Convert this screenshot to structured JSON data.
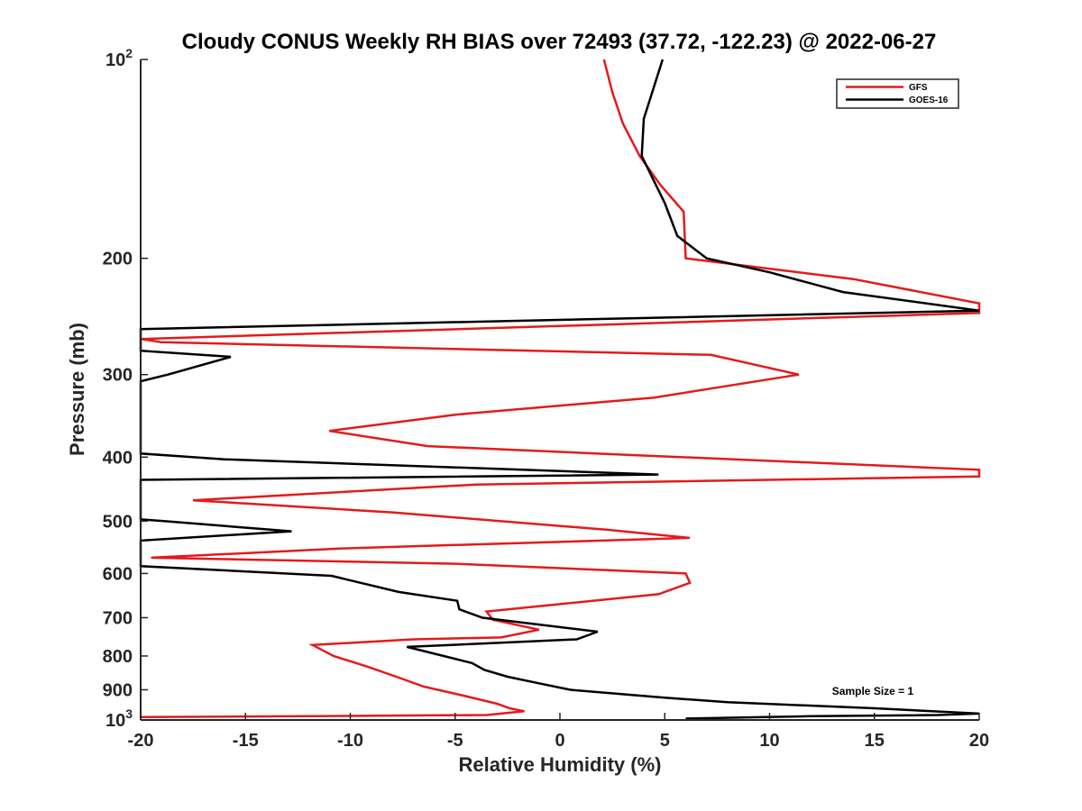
{
  "chart_data": {
    "type": "line",
    "title": "Cloudy CONUS Weekly RH BIAS over 72493 (37.72, -122.23) @ 2022-06-27",
    "xlabel": "Relative Humidity (%)",
    "ylabel": "Pressure (mb)",
    "xlim": [
      -20,
      20
    ],
    "ylim": [
      100,
      1000
    ],
    "y_scale": "log",
    "y_reversed": true,
    "x_ticks": [
      -20,
      -15,
      -10,
      -5,
      0,
      5,
      10,
      15,
      20
    ],
    "x_tick_labels": [
      "-20",
      "-15",
      "-10",
      "-5",
      "0",
      "5",
      "10",
      "15",
      "20"
    ],
    "y_ticks": [
      100,
      200,
      300,
      400,
      500,
      600,
      700,
      800,
      900,
      1000
    ],
    "y_tick_labels": [
      {
        "base": "10",
        "exp": "2"
      },
      {
        "base": "200",
        "exp": ""
      },
      {
        "base": "300",
        "exp": ""
      },
      {
        "base": "400",
        "exp": ""
      },
      {
        "base": "500",
        "exp": ""
      },
      {
        "base": "600",
        "exp": ""
      },
      {
        "base": "700",
        "exp": ""
      },
      {
        "base": "800",
        "exp": ""
      },
      {
        "base": "900",
        "exp": ""
      },
      {
        "base": "10",
        "exp": "3"
      }
    ],
    "grid": false,
    "legend_position": "top-right",
    "annotation": "Sample Size = 1",
    "series": [
      {
        "name": "GFS",
        "color": "#e41a1c",
        "points": [
          [
            2.1,
            100
          ],
          [
            2.5,
            112
          ],
          [
            3.0,
            125
          ],
          [
            3.8,
            140
          ],
          [
            4.8,
            155
          ],
          [
            5.9,
            170
          ],
          [
            6.0,
            200
          ],
          [
            14.0,
            215
          ],
          [
            20.0,
            234
          ],
          [
            20.0,
            242
          ],
          [
            -20.0,
            265
          ],
          [
            -19.0,
            268
          ],
          [
            7.2,
            280
          ],
          [
            11.4,
            300
          ],
          [
            4.5,
            325
          ],
          [
            -5.0,
            345
          ],
          [
            -11.0,
            365
          ],
          [
            -6.3,
            385
          ],
          [
            4.2,
            398
          ],
          [
            20.0,
            418
          ],
          [
            20.0,
            428
          ],
          [
            -4.0,
            440
          ],
          [
            -17.5,
            465
          ],
          [
            -8.0,
            485
          ],
          [
            2.2,
            515
          ],
          [
            6.2,
            530
          ],
          [
            -10.5,
            550
          ],
          [
            -19.5,
            568
          ],
          [
            -5.0,
            580
          ],
          [
            6.0,
            600
          ],
          [
            6.2,
            620
          ],
          [
            4.7,
            645
          ],
          [
            -3.5,
            685
          ],
          [
            -3.2,
            705
          ],
          [
            -1.0,
            730
          ],
          [
            -2.8,
            750
          ],
          [
            -7.0,
            755
          ],
          [
            -11.8,
            770
          ],
          [
            -10.8,
            800
          ],
          [
            -9.2,
            830
          ],
          [
            -7.8,
            860
          ],
          [
            -6.5,
            890
          ],
          [
            -4.5,
            920
          ],
          [
            -3.0,
            945
          ],
          [
            -2.4,
            960
          ],
          [
            -1.7,
            970
          ],
          [
            -3.5,
            983
          ],
          [
            -20.0,
            990
          ]
        ]
      },
      {
        "name": "GOES-16",
        "color": "#000000",
        "points": [
          [
            4.9,
            100
          ],
          [
            4.0,
            123
          ],
          [
            3.9,
            140
          ],
          [
            5.0,
            165
          ],
          [
            5.6,
            185
          ],
          [
            7.0,
            200
          ],
          [
            10.0,
            210
          ],
          [
            13.5,
            225
          ],
          [
            20.0,
            240
          ],
          [
            -20.0,
            256
          ],
          [
            -20.0,
            276
          ],
          [
            -15.7,
            282
          ],
          [
            -18.7,
            300
          ],
          [
            -20.0,
            307
          ],
          [
            -20.0,
            395
          ],
          [
            -16.0,
            403
          ],
          [
            4.7,
            425
          ],
          [
            -20.0,
            433
          ],
          [
            -20.0,
            497
          ],
          [
            -18.9,
            500
          ],
          [
            -12.8,
            518
          ],
          [
            -20.0,
            535
          ],
          [
            -20.0,
            585
          ],
          [
            -10.9,
            605
          ],
          [
            -7.7,
            640
          ],
          [
            -4.9,
            660
          ],
          [
            -4.8,
            680
          ],
          [
            -3.7,
            700
          ],
          [
            1.8,
            735
          ],
          [
            0.8,
            755
          ],
          [
            -7.3,
            775
          ],
          [
            -4.2,
            820
          ],
          [
            -3.6,
            840
          ],
          [
            -2.5,
            860
          ],
          [
            -1.0,
            880
          ],
          [
            0.5,
            900
          ],
          [
            5.0,
            925
          ],
          [
            8.0,
            940
          ],
          [
            15.0,
            960
          ],
          [
            20.0,
            978
          ],
          [
            18.0,
            983
          ],
          [
            12.0,
            987
          ],
          [
            6.0,
            995
          ]
        ]
      }
    ]
  }
}
